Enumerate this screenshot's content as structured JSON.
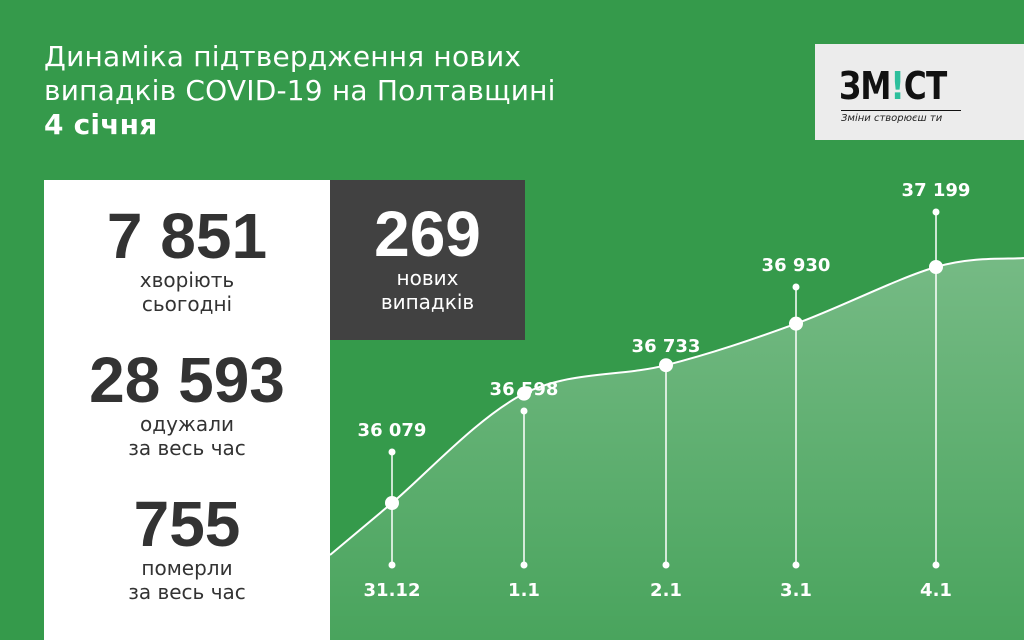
{
  "header": {
    "title_line1": "Динаміка підтвердження нових",
    "title_line2": "випадків COVID-19 на Полтавщині",
    "date": "4 січня"
  },
  "logo": {
    "brand_prefix": "ЗМ",
    "brand_accent": "!",
    "brand_suffix": "СТ",
    "tagline": "Зміни створюєш ти",
    "accent_color": "#2dbf9c"
  },
  "stats": {
    "sick": {
      "value": "7 851",
      "label1": "хворіють",
      "label2": "сьогодні"
    },
    "recovered": {
      "value": "28 593",
      "label1": "одужали",
      "label2": "за весь час"
    },
    "died": {
      "value": "755",
      "label1": "померли",
      "label2": "за весь час"
    }
  },
  "new_cases": {
    "value": "269",
    "label1": "нових",
    "label2": "випадків"
  },
  "colors": {
    "background": "#359a4b",
    "panel": "#ffffff",
    "dark_box": "#414141"
  },
  "chart_data": {
    "type": "area",
    "title": "",
    "xlabel": "",
    "ylabel": "",
    "categories": [
      "31.12",
      "1.1",
      "2.1",
      "3.1",
      "4.1"
    ],
    "values": [
      36079,
      36598,
      36733,
      36930,
      37199
    ],
    "value_labels": [
      "36 079",
      "36 598",
      "36 733",
      "36 930",
      "37 199"
    ],
    "grid": false,
    "legend": "none"
  }
}
